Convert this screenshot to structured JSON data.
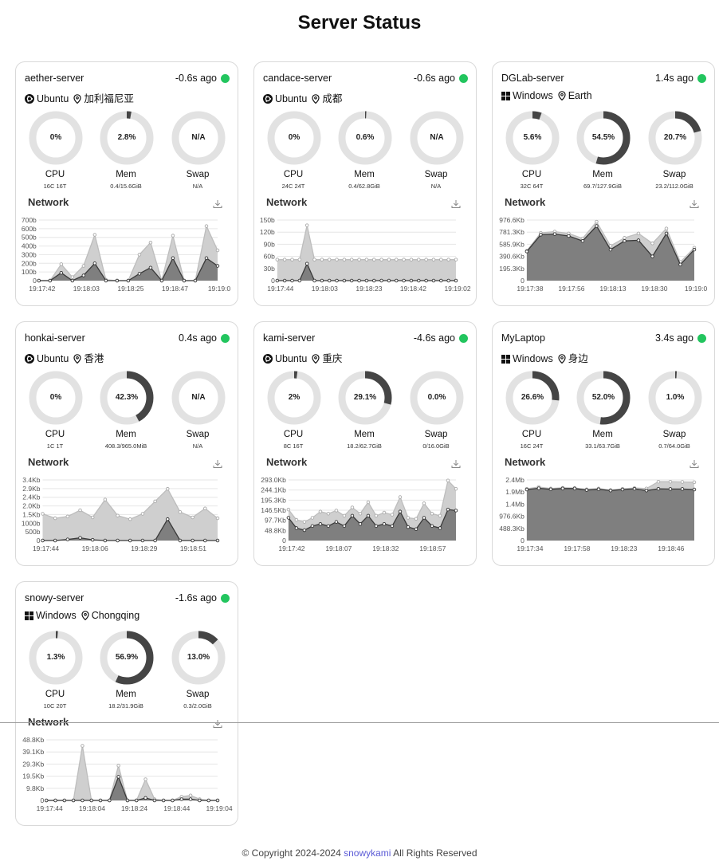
{
  "page": {
    "title": "Server Status"
  },
  "footer": {
    "prefix": "© Copyright 2024-2024",
    "link": "snowykami",
    "suffix": "All Rights Reserved"
  },
  "colors": {
    "online_dot": "#22c55e",
    "gauge_track": "#e2e2e2",
    "gauge_fill": "#454545",
    "area_total": "#cfcfcf",
    "area_secondary": "#7a7a7a"
  },
  "labels": {
    "cpu": "CPU",
    "mem": "Mem",
    "swap": "Swap",
    "network": "Network"
  },
  "servers": [
    {
      "name": "aether-server",
      "ago": "-0.6s ago",
      "os": "Ubuntu",
      "os_icon": "ubuntu-icon",
      "location": "加利福尼亚",
      "cpu": {
        "text": "0%",
        "value": 0,
        "sub": "16C 16T"
      },
      "mem": {
        "text": "2.8%",
        "value": 2.8,
        "sub": "0.4/15.6GiB"
      },
      "swap": {
        "text": "N/A",
        "value": 0,
        "sub": "N/A"
      },
      "chart_data": {
        "type": "area",
        "yticks": [
          "700b",
          "600b",
          "500b",
          "400b",
          "300b",
          "200b",
          "100b",
          "0"
        ],
        "ymax": 700,
        "xticks": [
          "19:17:42",
          "19:18:03",
          "19:18:25",
          "19:18:47",
          "19:19:0"
        ],
        "series": [
          {
            "values": [
              0,
              0,
              190,
              40,
              170,
              530,
              10,
              0,
              0,
              300,
              440,
              0,
              520,
              0,
              0,
              630,
              350
            ]
          },
          {
            "values": [
              0,
              0,
              90,
              0,
              60,
              200,
              0,
              0,
              0,
              80,
              150,
              0,
              260,
              0,
              0,
              260,
              170
            ]
          }
        ]
      }
    },
    {
      "name": "candace-server",
      "ago": "-0.6s ago",
      "os": "Ubuntu",
      "os_icon": "ubuntu-icon",
      "location": "成都",
      "cpu": {
        "text": "0%",
        "value": 0,
        "sub": "24C 24T"
      },
      "mem": {
        "text": "0.6%",
        "value": 0.6,
        "sub": "0.4/62.8GiB"
      },
      "swap": {
        "text": "N/A",
        "value": 0,
        "sub": "N/A"
      },
      "chart_data": {
        "type": "area",
        "yticks": [
          "150b",
          "120b",
          "90b",
          "60b",
          "30b",
          "0"
        ],
        "ymax": 150,
        "xticks": [
          "19:17:44",
          "19:18:03",
          "19:18:23",
          "19:18:42",
          "19:19:02"
        ],
        "series": [
          {
            "values": [
              52,
              52,
              52,
              52,
              137,
              52,
              52,
              52,
              52,
              52,
              52,
              52,
              52,
              52,
              52,
              52,
              52,
              52,
              52,
              52,
              52,
              52,
              52,
              52,
              52
            ]
          },
          {
            "values": [
              0,
              0,
              0,
              0,
              42,
              0,
              0,
              0,
              0,
              0,
              0,
              0,
              0,
              0,
              0,
              0,
              0,
              0,
              0,
              0,
              0,
              0,
              0,
              0,
              0
            ]
          }
        ]
      }
    },
    {
      "name": "DGLab-server",
      "ago": "1.4s ago",
      "os": "Windows",
      "os_icon": "windows-icon",
      "location": "Earth",
      "cpu": {
        "text": "5.6%",
        "value": 5.6,
        "sub": "32C 64T"
      },
      "mem": {
        "text": "54.5%",
        "value": 54.5,
        "sub": "69.7/127.9GiB"
      },
      "swap": {
        "text": "20.7%",
        "value": 20.7,
        "sub": "23.2/112.0GiB"
      },
      "chart_data": {
        "type": "area",
        "yticks": [
          "976.6Kb",
          "781.3Kb",
          "585.9Kb",
          "390.6Kb",
          "195.3Kb",
          "0"
        ],
        "ymax": 976.6,
        "xticks": [
          "19:17:38",
          "19:17:56",
          "19:18:13",
          "19:18:30",
          "19:19:0"
        ],
        "series": [
          {
            "values": [
              480,
              770,
              790,
              760,
              680,
              950,
              560,
              690,
              760,
              600,
              840,
              300,
              530
            ]
          },
          {
            "values": [
              470,
              740,
              750,
              720,
              640,
              880,
              500,
              640,
              650,
              390,
              760,
              260,
              500
            ]
          }
        ]
      }
    },
    {
      "name": "honkai-server",
      "ago": "0.4s ago",
      "os": "Ubuntu",
      "os_icon": "ubuntu-icon",
      "location": "香港",
      "cpu": {
        "text": "0%",
        "value": 0,
        "sub": "1C 1T"
      },
      "mem": {
        "text": "42.3%",
        "value": 42.3,
        "sub": "408.3/965.0MiB"
      },
      "swap": {
        "text": "N/A",
        "value": 0,
        "sub": "N/A"
      },
      "chart_data": {
        "type": "area",
        "yticks": [
          "3.4Kb",
          "2.9Kb",
          "2.4Kb",
          "2.0Kb",
          "1.5Kb",
          "1000b",
          "500b",
          "0"
        ],
        "ymax": 3400,
        "xticks": [
          "19:17:44",
          "19:18:06",
          "19:18:29",
          "19:18:51"
        ],
        "series": [
          {
            "values": [
              1500,
              1250,
              1350,
              1700,
              1300,
              2300,
              1400,
              1200,
              1500,
              2200,
              2900,
              1600,
              1300,
              1800,
              1250
            ]
          },
          {
            "values": [
              0,
              0,
              60,
              150,
              40,
              0,
              0,
              0,
              0,
              0,
              1200,
              0,
              0,
              0,
              0
            ]
          }
        ]
      }
    },
    {
      "name": "kami-server",
      "ago": "-4.6s ago",
      "os": "Ubuntu",
      "os_icon": "ubuntu-icon",
      "location": "重庆",
      "cpu": {
        "text": "2%",
        "value": 2,
        "sub": "8C 16T"
      },
      "mem": {
        "text": "29.1%",
        "value": 29.1,
        "sub": "18.2/62.7GiB"
      },
      "swap": {
        "text": "0.0%",
        "value": 0,
        "sub": "0/16.0GiB"
      },
      "chart_data": {
        "type": "area",
        "yticks": [
          "293.0Kb",
          "244.1Kb",
          "195.3Kb",
          "146.5Kb",
          "97.7Kb",
          "48.8Kb",
          "0"
        ],
        "ymax": 293,
        "xticks": [
          "19:17:42",
          "19:18:07",
          "19:18:32",
          "19:18:57"
        ],
        "series": [
          {
            "values": [
              150,
              100,
              90,
              110,
              140,
              130,
              145,
              120,
              160,
              130,
              185,
              120,
              135,
              125,
              210,
              110,
              105,
              180,
              130,
              120,
              290,
              250
            ]
          },
          {
            "values": [
              110,
              60,
              50,
              70,
              80,
              70,
              90,
              70,
              120,
              80,
              120,
              70,
              80,
              70,
              140,
              65,
              55,
              110,
              70,
              60,
              150,
              145
            ]
          }
        ]
      }
    },
    {
      "name": "MyLaptop",
      "ago": "3.4s ago",
      "os": "Windows",
      "os_icon": "windows-icon",
      "location": "身边",
      "cpu": {
        "text": "26.6%",
        "value": 26.6,
        "sub": "16C 24T"
      },
      "mem": {
        "text": "52.0%",
        "value": 52.0,
        "sub": "33.1/63.7GiB"
      },
      "swap": {
        "text": "1.0%",
        "value": 1.0,
        "sub": "0.7/64.0GiB"
      },
      "chart_data": {
        "type": "area",
        "yticks": [
          "2.4Mb",
          "1.9Mb",
          "1.4Mb",
          "976.6Kb",
          "488.3Kb",
          "0"
        ],
        "ymax": 2400,
        "xticks": [
          "19:17:34",
          "19:17:58",
          "19:18:23",
          "19:18:46"
        ],
        "series": [
          {
            "values": [
              2050,
              2120,
              2060,
              2090,
              2080,
              2030,
              2060,
              2000,
              2050,
              2080,
              2060,
              2330,
              2330,
              2320,
              2310
            ]
          },
          {
            "values": [
              2020,
              2070,
              2030,
              2060,
              2060,
              2000,
              2030,
              1980,
              2020,
              2050,
              1980,
              2050,
              2040,
              2040,
              2020
            ]
          }
        ]
      }
    },
    {
      "name": "snowy-server",
      "ago": "-1.6s ago",
      "os": "Windows",
      "os_icon": "windows-icon",
      "location": "Chongqing",
      "cpu": {
        "text": "1.3%",
        "value": 1.3,
        "sub": "10C 20T"
      },
      "mem": {
        "text": "56.9%",
        "value": 56.9,
        "sub": "18.2/31.9GiB"
      },
      "swap": {
        "text": "13.0%",
        "value": 13.0,
        "sub": "0.3/2.0GiB"
      },
      "chart_data": {
        "type": "area",
        "yticks": [
          "48.8Kb",
          "39.1Kb",
          "29.3Kb",
          "19.5Kb",
          "9.8Kb",
          "0"
        ],
        "ymax": 48.8,
        "xticks": [
          "19:17:44",
          "19:18:04",
          "19:18:24",
          "19:18:44",
          "19:19:04"
        ],
        "series": [
          {
            "values": [
              0,
              0,
              0,
              0,
              44,
              0,
              0,
              0,
              28,
              0,
              0,
              17,
              1,
              0,
              0,
              3,
              4,
              1,
              0,
              0
            ]
          },
          {
            "values": [
              0,
              0,
              0,
              0,
              0,
              0,
              0,
              0,
              19,
              0,
              0,
              2,
              0,
              0,
              0,
              1,
              1,
              0,
              0,
              0
            ]
          }
        ]
      }
    }
  ]
}
